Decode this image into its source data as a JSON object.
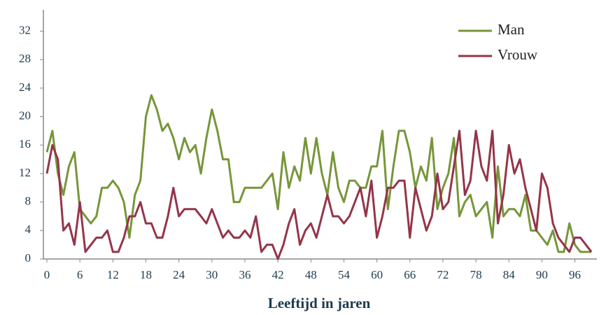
{
  "chart_data": {
    "type": "line",
    "x_label": "Leeftijd in jaren",
    "x": [
      0,
      1,
      2,
      3,
      4,
      5,
      6,
      7,
      8,
      9,
      10,
      11,
      12,
      13,
      14,
      15,
      16,
      17,
      18,
      19,
      20,
      21,
      22,
      23,
      24,
      25,
      26,
      27,
      28,
      29,
      30,
      31,
      32,
      33,
      34,
      35,
      36,
      37,
      38,
      39,
      40,
      41,
      42,
      43,
      44,
      45,
      46,
      47,
      48,
      49,
      50,
      51,
      52,
      53,
      54,
      55,
      56,
      57,
      58,
      59,
      60,
      61,
      62,
      63,
      64,
      65,
      66,
      67,
      68,
      69,
      70,
      71,
      72,
      73,
      74,
      75,
      76,
      77,
      78,
      79,
      80,
      81,
      82,
      83,
      84,
      85,
      86,
      87,
      88,
      89,
      90,
      91,
      92,
      93,
      94,
      95,
      96,
      97,
      98,
      99
    ],
    "series": [
      {
        "name": "Man",
        "color": "#77963a",
        "values": [
          15,
          18,
          12,
          9,
          13,
          15,
          7,
          6,
          5,
          6,
          10,
          10,
          11,
          10,
          8,
          3,
          9,
          11,
          20,
          23,
          21,
          18,
          19,
          17,
          14,
          17,
          15,
          16,
          12,
          17,
          21,
          18,
          14,
          14,
          8,
          8,
          10,
          10,
          10,
          10,
          11,
          12,
          7,
          15,
          10,
          13,
          11,
          17,
          12,
          17,
          12,
          9,
          15,
          10,
          8,
          11,
          11,
          10,
          10,
          13,
          13,
          18,
          7,
          13,
          18,
          18,
          15,
          10,
          13,
          11,
          17,
          7,
          10,
          12,
          17,
          6,
          8,
          9,
          6,
          7,
          8,
          3,
          13,
          6,
          7,
          7,
          6,
          9,
          4,
          4,
          3,
          2,
          4,
          1,
          1,
          5,
          2,
          1,
          1,
          1
        ]
      },
      {
        "name": "Vrouw",
        "color": "#943549",
        "values": [
          12,
          16,
          14,
          4,
          5,
          2,
          8,
          1,
          2,
          3,
          3,
          4,
          1,
          1,
          3,
          6,
          6,
          8,
          5,
          5,
          3,
          3,
          6,
          10,
          6,
          7,
          7,
          7,
          6,
          5,
          7,
          5,
          3,
          4,
          3,
          3,
          4,
          3,
          6,
          1,
          2,
          2,
          0,
          2,
          5,
          7,
          2,
          4,
          5,
          3,
          6,
          9,
          6,
          6,
          5,
          6,
          8,
          10,
          6,
          11,
          3,
          6,
          10,
          10,
          11,
          11,
          3,
          10,
          7,
          4,
          6,
          12,
          7,
          8,
          13,
          18,
          9,
          11,
          18,
          13,
          11,
          18,
          5,
          9,
          16,
          12,
          14,
          10,
          7,
          4,
          12,
          10,
          5,
          3,
          2,
          1,
          3,
          3,
          2,
          1
        ]
      }
    ],
    "xlim": [
      0,
      100
    ],
    "xticks": [
      0,
      6,
      12,
      18,
      24,
      30,
      36,
      42,
      48,
      54,
      60,
      66,
      72,
      78,
      84,
      90,
      96
    ],
    "ylim": [
      0,
      35
    ],
    "yticks": [
      0,
      4,
      8,
      12,
      16,
      20,
      24,
      28,
      32
    ],
    "legend": "top-right"
  }
}
